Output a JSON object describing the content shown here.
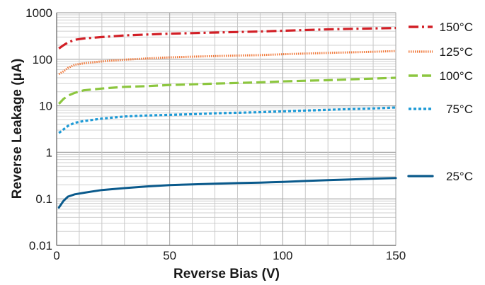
{
  "chart_data": {
    "type": "line",
    "xlabel": "Reverse Bias (V)",
    "ylabel": "Reverse Leakage (μA)",
    "xlim": [
      0,
      150
    ],
    "ylim": [
      0.01,
      1000
    ],
    "yscale": "log",
    "grid": true,
    "legend_position": "right",
    "x_ticks": [
      "0",
      "50",
      "100",
      "150"
    ],
    "y_ticks": [
      "0.01",
      "0.1",
      "1",
      "10",
      "100",
      "1000"
    ],
    "series": [
      {
        "name": "150°C",
        "color": "#d21f26",
        "style": "dash-dot",
        "points": [
          [
            1,
            170
          ],
          [
            3,
            200
          ],
          [
            5,
            230
          ],
          [
            8,
            262
          ],
          [
            12,
            280
          ],
          [
            20,
            300
          ],
          [
            30,
            325
          ],
          [
            40,
            340
          ],
          [
            50,
            355
          ],
          [
            60,
            365
          ],
          [
            70,
            375
          ],
          [
            80,
            385
          ],
          [
            90,
            395
          ],
          [
            100,
            410
          ],
          [
            110,
            425
          ],
          [
            120,
            440
          ],
          [
            130,
            450
          ],
          [
            140,
            460
          ],
          [
            150,
            470
          ]
        ]
      },
      {
        "name": "125°C",
        "color": "#f07a3c",
        "style": "dotted",
        "points": [
          [
            1,
            48
          ],
          [
            3,
            55
          ],
          [
            5,
            65
          ],
          [
            8,
            76
          ],
          [
            12,
            82
          ],
          [
            20,
            90
          ],
          [
            30,
            98
          ],
          [
            40,
            104
          ],
          [
            50,
            110
          ],
          [
            60,
            114
          ],
          [
            70,
            117
          ],
          [
            80,
            120
          ],
          [
            90,
            123
          ],
          [
            100,
            128
          ],
          [
            110,
            133
          ],
          [
            120,
            137
          ],
          [
            130,
            141
          ],
          [
            140,
            145
          ],
          [
            150,
            150
          ]
        ]
      },
      {
        "name": "100°C",
        "color": "#8cc63f",
        "style": "dashed",
        "points": [
          [
            1,
            11
          ],
          [
            3,
            14
          ],
          [
            5,
            16.5
          ],
          [
            8,
            19
          ],
          [
            12,
            21.5
          ],
          [
            20,
            23.5
          ],
          [
            30,
            25.5
          ],
          [
            40,
            26.5
          ],
          [
            50,
            28
          ],
          [
            60,
            29
          ],
          [
            70,
            30
          ],
          [
            80,
            31
          ],
          [
            90,
            32
          ],
          [
            100,
            33.5
          ],
          [
            110,
            34.5
          ],
          [
            120,
            35.5
          ],
          [
            130,
            37
          ],
          [
            140,
            38.5
          ],
          [
            150,
            40
          ]
        ]
      },
      {
        "name": "75°C",
        "color": "#1d9ad6",
        "style": "dotted",
        "points": [
          [
            1,
            2.6
          ],
          [
            3,
            3.1
          ],
          [
            5,
            3.7
          ],
          [
            8,
            4.3
          ],
          [
            12,
            4.7
          ],
          [
            20,
            5.3
          ],
          [
            30,
            5.9
          ],
          [
            40,
            6.2
          ],
          [
            50,
            6.4
          ],
          [
            60,
            6.6
          ],
          [
            70,
            6.9
          ],
          [
            80,
            7.1
          ],
          [
            90,
            7.3
          ],
          [
            100,
            7.6
          ],
          [
            110,
            7.9
          ],
          [
            120,
            8.2
          ],
          [
            130,
            8.5
          ],
          [
            140,
            8.8
          ],
          [
            150,
            9.2
          ]
        ]
      },
      {
        "name": "25°C",
        "color": "#0a5a8c",
        "style": "solid",
        "points": [
          [
            1,
            0.065
          ],
          [
            3,
            0.09
          ],
          [
            5,
            0.112
          ],
          [
            8,
            0.125
          ],
          [
            12,
            0.135
          ],
          [
            20,
            0.155
          ],
          [
            30,
            0.17
          ],
          [
            40,
            0.185
          ],
          [
            50,
            0.198
          ],
          [
            60,
            0.205
          ],
          [
            70,
            0.212
          ],
          [
            80,
            0.218
          ],
          [
            90,
            0.224
          ],
          [
            100,
            0.232
          ],
          [
            110,
            0.242
          ],
          [
            120,
            0.252
          ],
          [
            130,
            0.262
          ],
          [
            140,
            0.272
          ],
          [
            150,
            0.28
          ]
        ]
      }
    ]
  }
}
